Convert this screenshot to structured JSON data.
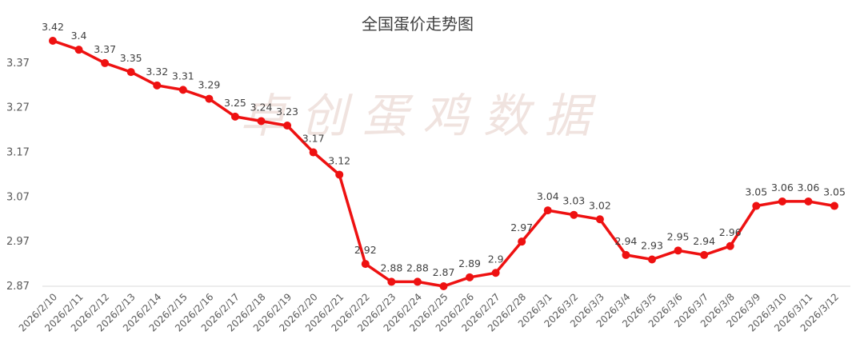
{
  "chart_data": {
    "type": "line",
    "title": "全国蛋价走势图",
    "watermark": "卓创蛋鸡数据",
    "xlabel": "",
    "ylabel": "",
    "ylim": [
      2.87,
      3.42
    ],
    "yticks": [
      "3.37",
      "3.27",
      "3.17",
      "3.07",
      "2.97",
      "2.87"
    ],
    "ytick_values": [
      3.37,
      3.27,
      3.17,
      3.07,
      2.97,
      2.87
    ],
    "grid": false,
    "legend": "none",
    "line_color": "#ee1111",
    "categories": [
      "2026/2/10",
      "2026/2/11",
      "2026/2/12",
      "2026/2/13",
      "2026/2/14",
      "2026/2/15",
      "2026/2/16",
      "2026/2/17",
      "2026/2/18",
      "2026/2/19",
      "2026/2/20",
      "2026/2/21",
      "2026/2/22",
      "2026/2/23",
      "2026/2/24",
      "2026/2/25",
      "2026/2/26",
      "2026/2/27",
      "2026/2/28",
      "2026/3/1",
      "2026/3/2",
      "2026/3/3",
      "2026/3/4",
      "2026/3/5",
      "2026/3/6",
      "2026/3/7",
      "2026/3/8",
      "2026/3/9",
      "2026/3/10",
      "2026/3/11",
      "2026/3/12"
    ],
    "series": [
      {
        "values": [
          3.42,
          3.4,
          3.37,
          3.35,
          3.32,
          3.31,
          3.29,
          3.25,
          3.24,
          3.23,
          3.17,
          3.12,
          2.92,
          2.88,
          2.88,
          2.87,
          2.89,
          2.9,
          2.97,
          3.04,
          3.03,
          3.02,
          2.94,
          2.93,
          2.95,
          2.94,
          2.96,
          3.05,
          3.06,
          3.06,
          3.05
        ],
        "labels": [
          "3.42",
          "3.4",
          "3.37",
          "3.35",
          "3.32",
          "3.31",
          "3.29",
          "3.25",
          "3.24",
          "3.23",
          "3.17",
          "3.12",
          "2.92",
          "2.88",
          "2.88",
          "2.87",
          "2.89",
          "2.9",
          "2.97",
          "3.04",
          "3.03",
          "3.02",
          "2.94",
          "2.93",
          "2.95",
          "2.94",
          "2.96",
          "3.05",
          "3.06",
          "3.06",
          "3.05"
        ]
      }
    ]
  }
}
